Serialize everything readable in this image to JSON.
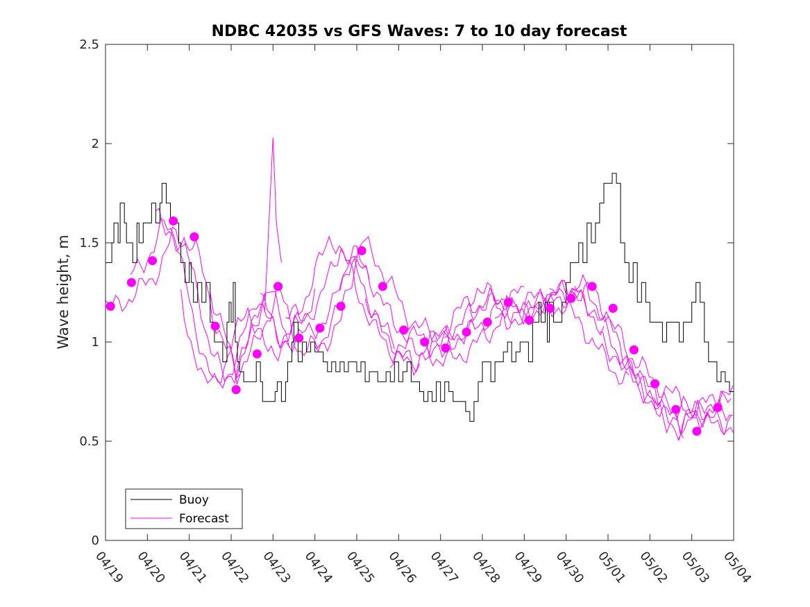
{
  "chart_data": {
    "type": "line",
    "title": "NDBC 42035 vs GFS Waves: 7 to 10 day forecast",
    "xlabel": "",
    "ylabel": "Wave height, m",
    "xlim": [
      "04/19",
      "05/04"
    ],
    "ylim": [
      0,
      2.5
    ],
    "x_ticks": [
      "04/19",
      "04/20",
      "04/21",
      "04/22",
      "04/23",
      "04/24",
      "04/25",
      "04/26",
      "04/27",
      "04/28",
      "04/29",
      "04/30",
      "05/01",
      "05/02",
      "05/03",
      "05/04"
    ],
    "y_ticks": [
      "0",
      "0.5",
      "1",
      "1.5",
      "2",
      "2.5"
    ],
    "grid": false,
    "legend": {
      "position": "bottom-left",
      "entries": [
        "Buoy",
        "Forecast"
      ]
    },
    "colors": {
      "buoy": "#000000",
      "forecast": "#ff00ff",
      "axes": "#262626"
    },
    "series": [
      {
        "name": "Buoy",
        "x_days": [
          0,
          0.15,
          0.2,
          0.3,
          0.35,
          0.45,
          0.5,
          0.55,
          0.65,
          0.75,
          0.8,
          0.9,
          1.0,
          1.1,
          1.2,
          1.3,
          1.35,
          1.45,
          1.55,
          1.7,
          1.75,
          1.8,
          1.9,
          2.0,
          2.05,
          2.1,
          2.2,
          2.3,
          2.4,
          2.5,
          2.6,
          2.7,
          2.8,
          2.9,
          2.95,
          3.0,
          3.05,
          3.1,
          3.15,
          3.2,
          3.3,
          3.4,
          3.5,
          3.6,
          3.7,
          3.75,
          3.8,
          3.9,
          4.0,
          4.05,
          4.1,
          4.2,
          4.3,
          4.35,
          4.45,
          4.5,
          4.6,
          4.7,
          4.8,
          4.9,
          5.0,
          5.2,
          5.3,
          5.4,
          5.5,
          5.6,
          5.7,
          5.8,
          5.9,
          6.0,
          6.1,
          6.2,
          6.3,
          6.4,
          6.5,
          6.6,
          6.7,
          6.8,
          6.9,
          7.0,
          7.1,
          7.2,
          7.3,
          7.4,
          7.5,
          7.6,
          7.7,
          7.8,
          7.9,
          8.0,
          8.1,
          8.2,
          8.3,
          8.4,
          8.5,
          8.6,
          8.7,
          8.8,
          8.9,
          9.0,
          9.1,
          9.2,
          9.3,
          9.4,
          9.5,
          9.6,
          9.7,
          9.8,
          9.9,
          10.0,
          10.1,
          10.2,
          10.3,
          10.35,
          10.4,
          10.5,
          10.55,
          10.6,
          10.7,
          10.8,
          10.9,
          11.0,
          11.1,
          11.2,
          11.3,
          11.4,
          11.5,
          11.6,
          11.7,
          11.8,
          11.9,
          12.0,
          12.1,
          12.2,
          12.3,
          12.4,
          12.5,
          12.6,
          12.7,
          12.8,
          12.9,
          13.0,
          13.1,
          13.2,
          13.3,
          13.4,
          13.5,
          13.6,
          13.7,
          13.8,
          13.9,
          14.0,
          14.1,
          14.2,
          14.3,
          14.4,
          14.5,
          14.6,
          14.7,
          14.8,
          14.9,
          15.0
        ],
        "y": [
          1.4,
          1.5,
          1.6,
          1.5,
          1.7,
          1.6,
          1.5,
          1.5,
          1.4,
          1.6,
          1.5,
          1.6,
          1.6,
          1.7,
          1.6,
          1.7,
          1.8,
          1.7,
          1.6,
          1.6,
          1.5,
          1.4,
          1.3,
          1.4,
          1.3,
          1.2,
          1.3,
          1.2,
          1.3,
          1.1,
          1.0,
          1.0,
          0.9,
          1.1,
          1.2,
          1.1,
          1.3,
          1.0,
          0.9,
          0.85,
          0.8,
          0.8,
          0.8,
          0.9,
          0.8,
          0.7,
          0.7,
          0.7,
          0.7,
          0.75,
          0.8,
          0.7,
          0.8,
          0.9,
          1.0,
          1.1,
          0.9,
          1.0,
          0.95,
          1.0,
          0.95,
          0.9,
          0.85,
          0.9,
          0.85,
          0.9,
          0.85,
          0.9,
          0.9,
          0.85,
          0.9,
          0.8,
          0.85,
          0.85,
          0.8,
          0.8,
          0.85,
          0.8,
          0.9,
          0.8,
          0.85,
          0.9,
          0.8,
          0.8,
          0.75,
          0.7,
          0.75,
          0.7,
          0.8,
          0.7,
          0.8,
          0.75,
          0.7,
          0.7,
          0.7,
          0.65,
          0.6,
          0.7,
          0.8,
          0.9,
          0.9,
          0.8,
          0.9,
          0.9,
          0.95,
          1.0,
          0.9,
          0.95,
          1.0,
          1.0,
          0.9,
          1.1,
          1.1,
          1.2,
          1.1,
          1.2,
          1.0,
          1.2,
          1.1,
          1.1,
          1.2,
          1.3,
          1.4,
          1.4,
          1.5,
          1.4,
          1.6,
          1.5,
          1.6,
          1.7,
          1.8,
          1.8,
          1.85,
          1.8,
          1.5,
          1.4,
          1.3,
          1.4,
          1.2,
          1.3,
          1.2,
          1.1,
          1.1,
          1.1,
          1.0,
          1.1,
          1.1,
          1.1,
          1.0,
          1.1,
          1.1,
          1.2,
          1.3,
          1.2,
          1.0,
          0.9,
          0.9,
          0.8,
          0.85,
          0.8,
          0.75,
          0.7
        ]
      },
      {
        "name": "Forecast",
        "x_days": [
          0,
          0.5,
          1.0,
          1.5,
          2.0,
          2.5,
          3.0,
          3.5,
          4.0,
          4.5,
          5.0,
          5.5,
          6.0,
          6.5,
          7.0,
          7.5,
          8.0,
          8.5,
          9.0,
          9.5,
          10.0,
          10.5,
          11.0,
          11.5,
          12.0,
          12.5,
          13.0,
          13.5,
          14.0,
          14.5
        ],
        "y": [
          1.18,
          1.3,
          1.41,
          1.61,
          1.53,
          1.08,
          0.76,
          0.94,
          1.28,
          1.02,
          1.07,
          1.18,
          1.46,
          1.28,
          1.06,
          1.0,
          0.97,
          1.05,
          1.1,
          1.2,
          1.11,
          1.17,
          1.22,
          1.28,
          1.17,
          0.96,
          0.79,
          0.66,
          0.55,
          0.67
        ]
      }
    ]
  }
}
